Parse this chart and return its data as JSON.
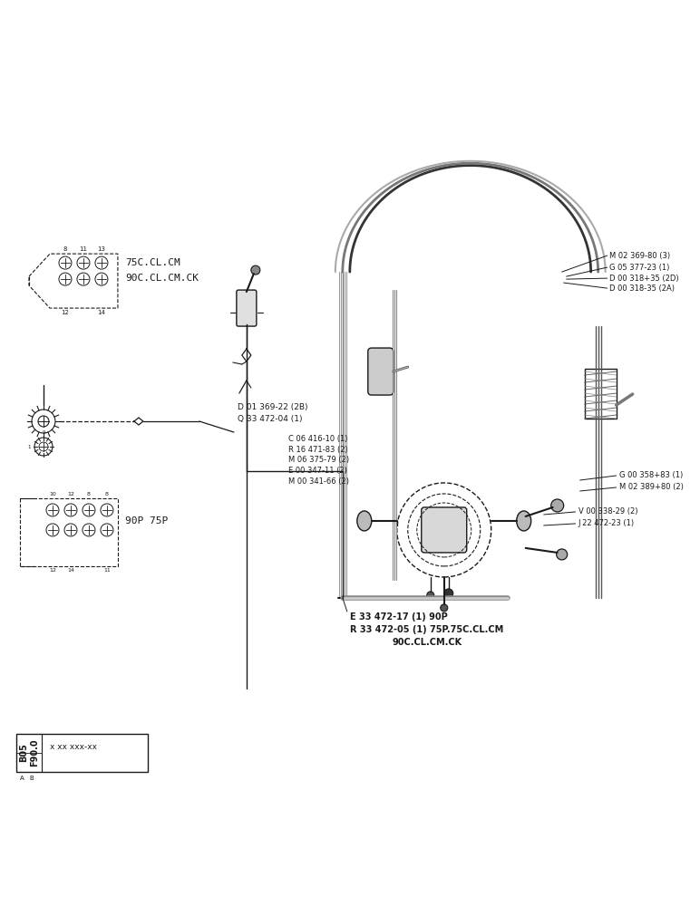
{
  "bg_color": "#ffffff",
  "line_color": "#1a1a1a",
  "labels_right_top": [
    "M 02 369-80 (3)",
    "G 05 377-23 (1)",
    "D 00 318+35 (2D)",
    "D 00 318-35 (2A)"
  ],
  "labels_center": [
    "C 06 416-10 (1)",
    "R 16 471-83 (2)",
    "M 06 375-79 (2)",
    "E 00 347-11 (2)",
    "M 00 341-66 (2)"
  ],
  "labels_bottom_left": [
    "D 01 369-22 (2B)",
    "Q 33 472-04 (1)"
  ],
  "labels_bottom_center": [
    "E 33 472-17 (1) 90P",
    "R 33 472-05 (1) 75P.75C.CL.CM",
    "90C.CL.CM.CK"
  ],
  "labels_right_mid": [
    "G 00 358+83 (1)",
    "M 02 389+80 (2)"
  ],
  "labels_right_lower": [
    "V 00 338-29 (2)",
    "J 22 472-23 (1)"
  ],
  "label_top_left_1": "75C.CL.CM",
  "label_top_left_2": "90C.CL.CM.CK",
  "label_mid_left": "90P 75P",
  "label_bottom_box_left": "B05\nF90.0",
  "label_bottom_box_right": "x xx xxx-xx"
}
